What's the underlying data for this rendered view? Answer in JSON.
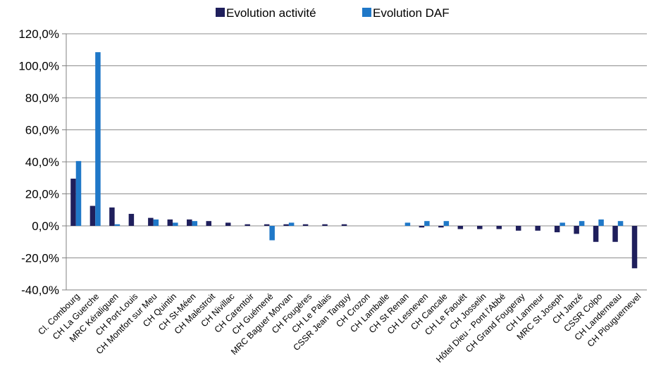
{
  "chart_data": {
    "type": "bar",
    "categories": [
      "Cl. Combourg",
      "CH La Guerche",
      "MRC Kéraliguen",
      "CH Port-Louis",
      "CH Montfort sur Meu",
      "CH Quintin",
      "CH St-Méen",
      "CH Malestroit",
      "CH Nivillac",
      "CH Carentoir",
      "CH Guémené",
      "MRC Baguer Morvan",
      "CH Fougères",
      "CH Le Palais",
      "CSSR Jean Tanguy",
      "CH Crozon",
      "CH Lamballe",
      "CH St Renan",
      "CH Lesneven",
      "CH Cancale",
      "CH Le Faouët",
      "CH Josselin",
      "Hôtel Dieu - Pont l'Abbé",
      "CH Grand Fougeray",
      "CH Lanmeur",
      "MRC St Joseph",
      "CH Janzé",
      "CSSR Colpo",
      "CH Landerneau",
      "CH Plouguernevel"
    ],
    "series": [
      {
        "name": "Evolution activité",
        "color": "#1f1f5c",
        "values": [
          29.5,
          12.5,
          11.5,
          7.5,
          5.0,
          4.0,
          4.0,
          3.0,
          2.0,
          1.0,
          1.0,
          1.0,
          1.0,
          1.0,
          1.0,
          0.0,
          0.0,
          0.0,
          -1.0,
          -1.0,
          -2.0,
          -2.0,
          -2.0,
          -3.0,
          -3.0,
          -4.0,
          -5.0,
          -10.0,
          -10.0,
          -26.5
        ]
      },
      {
        "name": "Evolution DAF",
        "color": "#1f78c8",
        "values": [
          40.5,
          108.5,
          1.0,
          0.0,
          4.0,
          2.0,
          3.0,
          0.0,
          0.0,
          0.0,
          -9.0,
          2.0,
          0.0,
          0.0,
          0.0,
          0.0,
          0.0,
          2.0,
          3.0,
          3.0,
          0.0,
          0.0,
          0.0,
          0.0,
          0.0,
          2.0,
          3.0,
          4.0,
          3.0,
          0.0
        ]
      }
    ],
    "ylim": [
      -40,
      120
    ],
    "yticks": [
      "120,0%",
      "100,0%",
      "80,0%",
      "60,0%",
      "40,0%",
      "20,0%",
      "0,0%",
      "-20,0%",
      "-40,0%"
    ],
    "ytick_values": [
      120,
      100,
      80,
      60,
      40,
      20,
      0,
      -20,
      -40
    ],
    "grid": true,
    "legend_position": "top",
    "title": "",
    "xlabel": "",
    "ylabel": ""
  }
}
